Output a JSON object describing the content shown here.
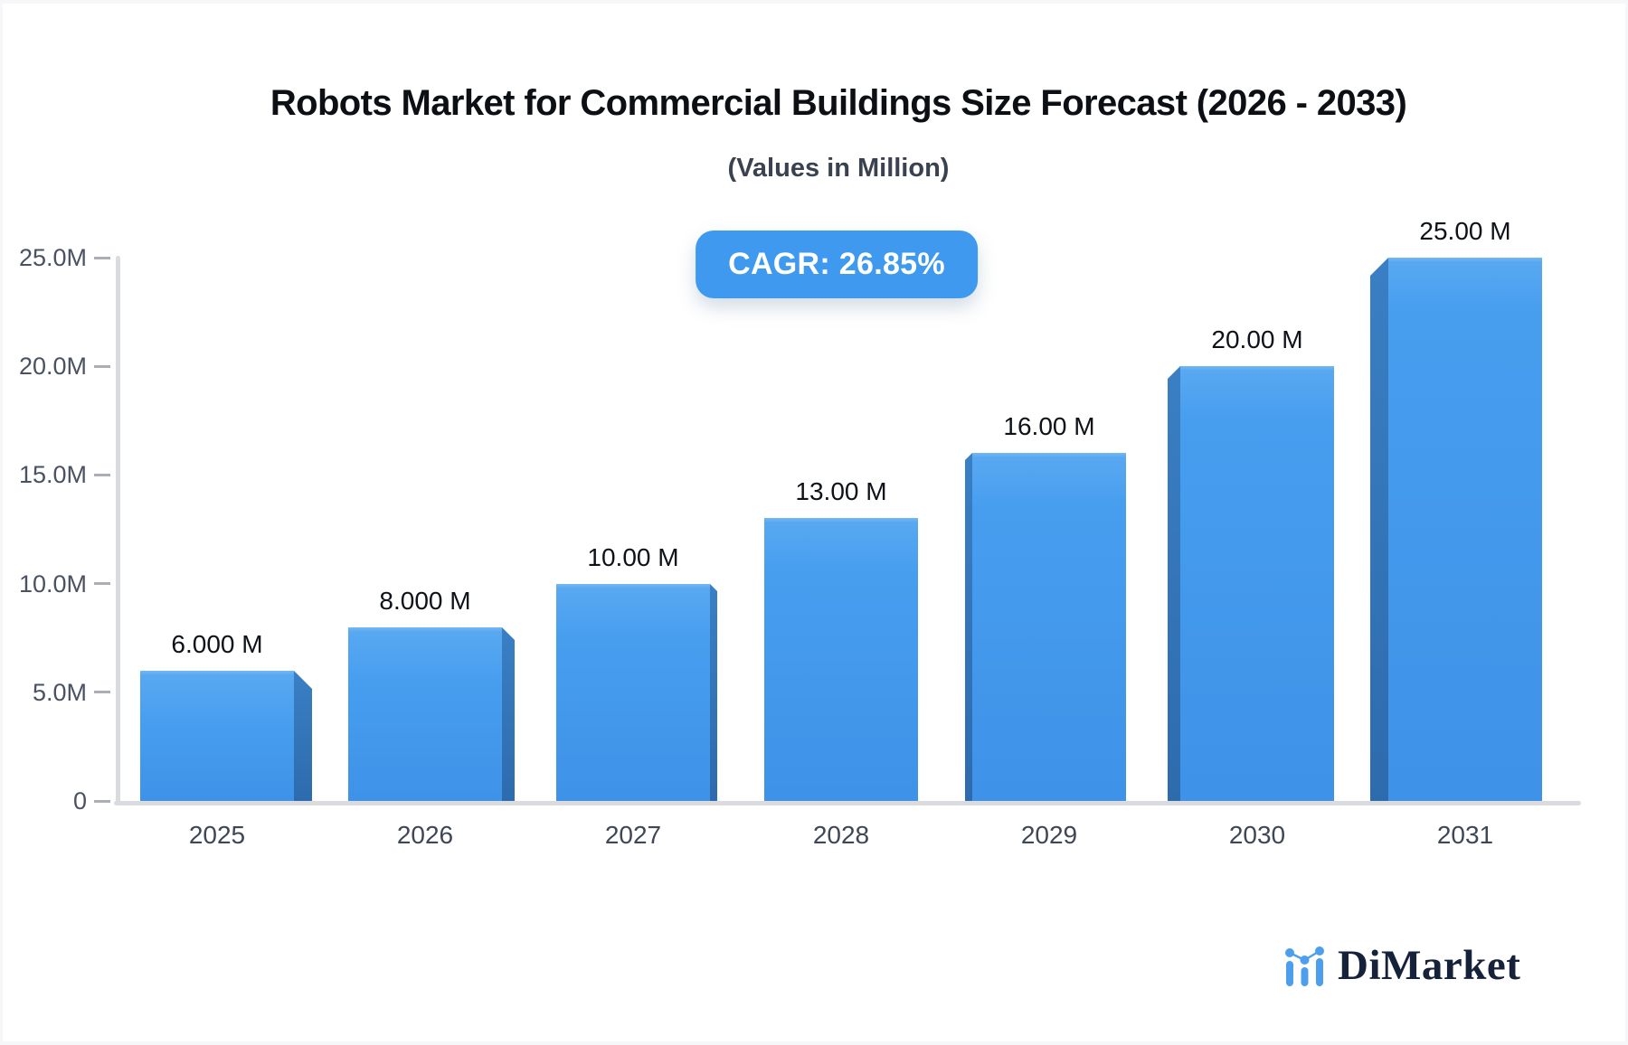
{
  "header": {
    "title": "Robots Market for Commercial Buildings Size Forecast (2026 - 2033)",
    "subtitle": "(Values in Million)",
    "cagr_badge": "CAGR: 26.85%"
  },
  "chart_data": {
    "type": "bar",
    "title": "Robots Market for Commercial Buildings Size Forecast (2026 - 2033)",
    "subtitle": "(Values in Million)",
    "xlabel": "",
    "ylabel": "",
    "categories": [
      "2025",
      "2026",
      "2027",
      "2028",
      "2029",
      "2030",
      "2031"
    ],
    "values": [
      6,
      8,
      10,
      13,
      16,
      20,
      25
    ],
    "value_labels": [
      "6.000 M",
      "8.000 M",
      "10.00 M",
      "13.00 M",
      "16.00 M",
      "20.00 M",
      "25.00 M"
    ],
    "y_ticks": [
      {
        "value": 25,
        "label": "25.0M"
      },
      {
        "value": 20,
        "label": "20.0M"
      },
      {
        "value": 15,
        "label": "15.0M"
      },
      {
        "value": 10,
        "label": "10.0M"
      },
      {
        "value": 5,
        "label": "5.0M"
      },
      {
        "value": 0,
        "label": "0"
      }
    ],
    "ylim": [
      0,
      25
    ],
    "grid": "off",
    "legend": "none",
    "annotation": "CAGR: 26.85%",
    "bar_style": "3d-extruded, perspective toward center",
    "bar_color": "#429BEE",
    "bar_side_color": "#2F71B5"
  },
  "branding": {
    "logo_text": "DiMarket",
    "logo_icon": "bar-line-chart-icon",
    "logo_text_color": "#15223A",
    "logo_icon_color": "#4D9FEE"
  },
  "colors": {
    "accent_blue": "#3F99EE",
    "axis_line": "#D9DBDE",
    "tick_dash": "#A9AEB7",
    "title_text": "#0C0F14",
    "slate_text": "#4A5261",
    "page_edge": "#F6F7F9"
  }
}
